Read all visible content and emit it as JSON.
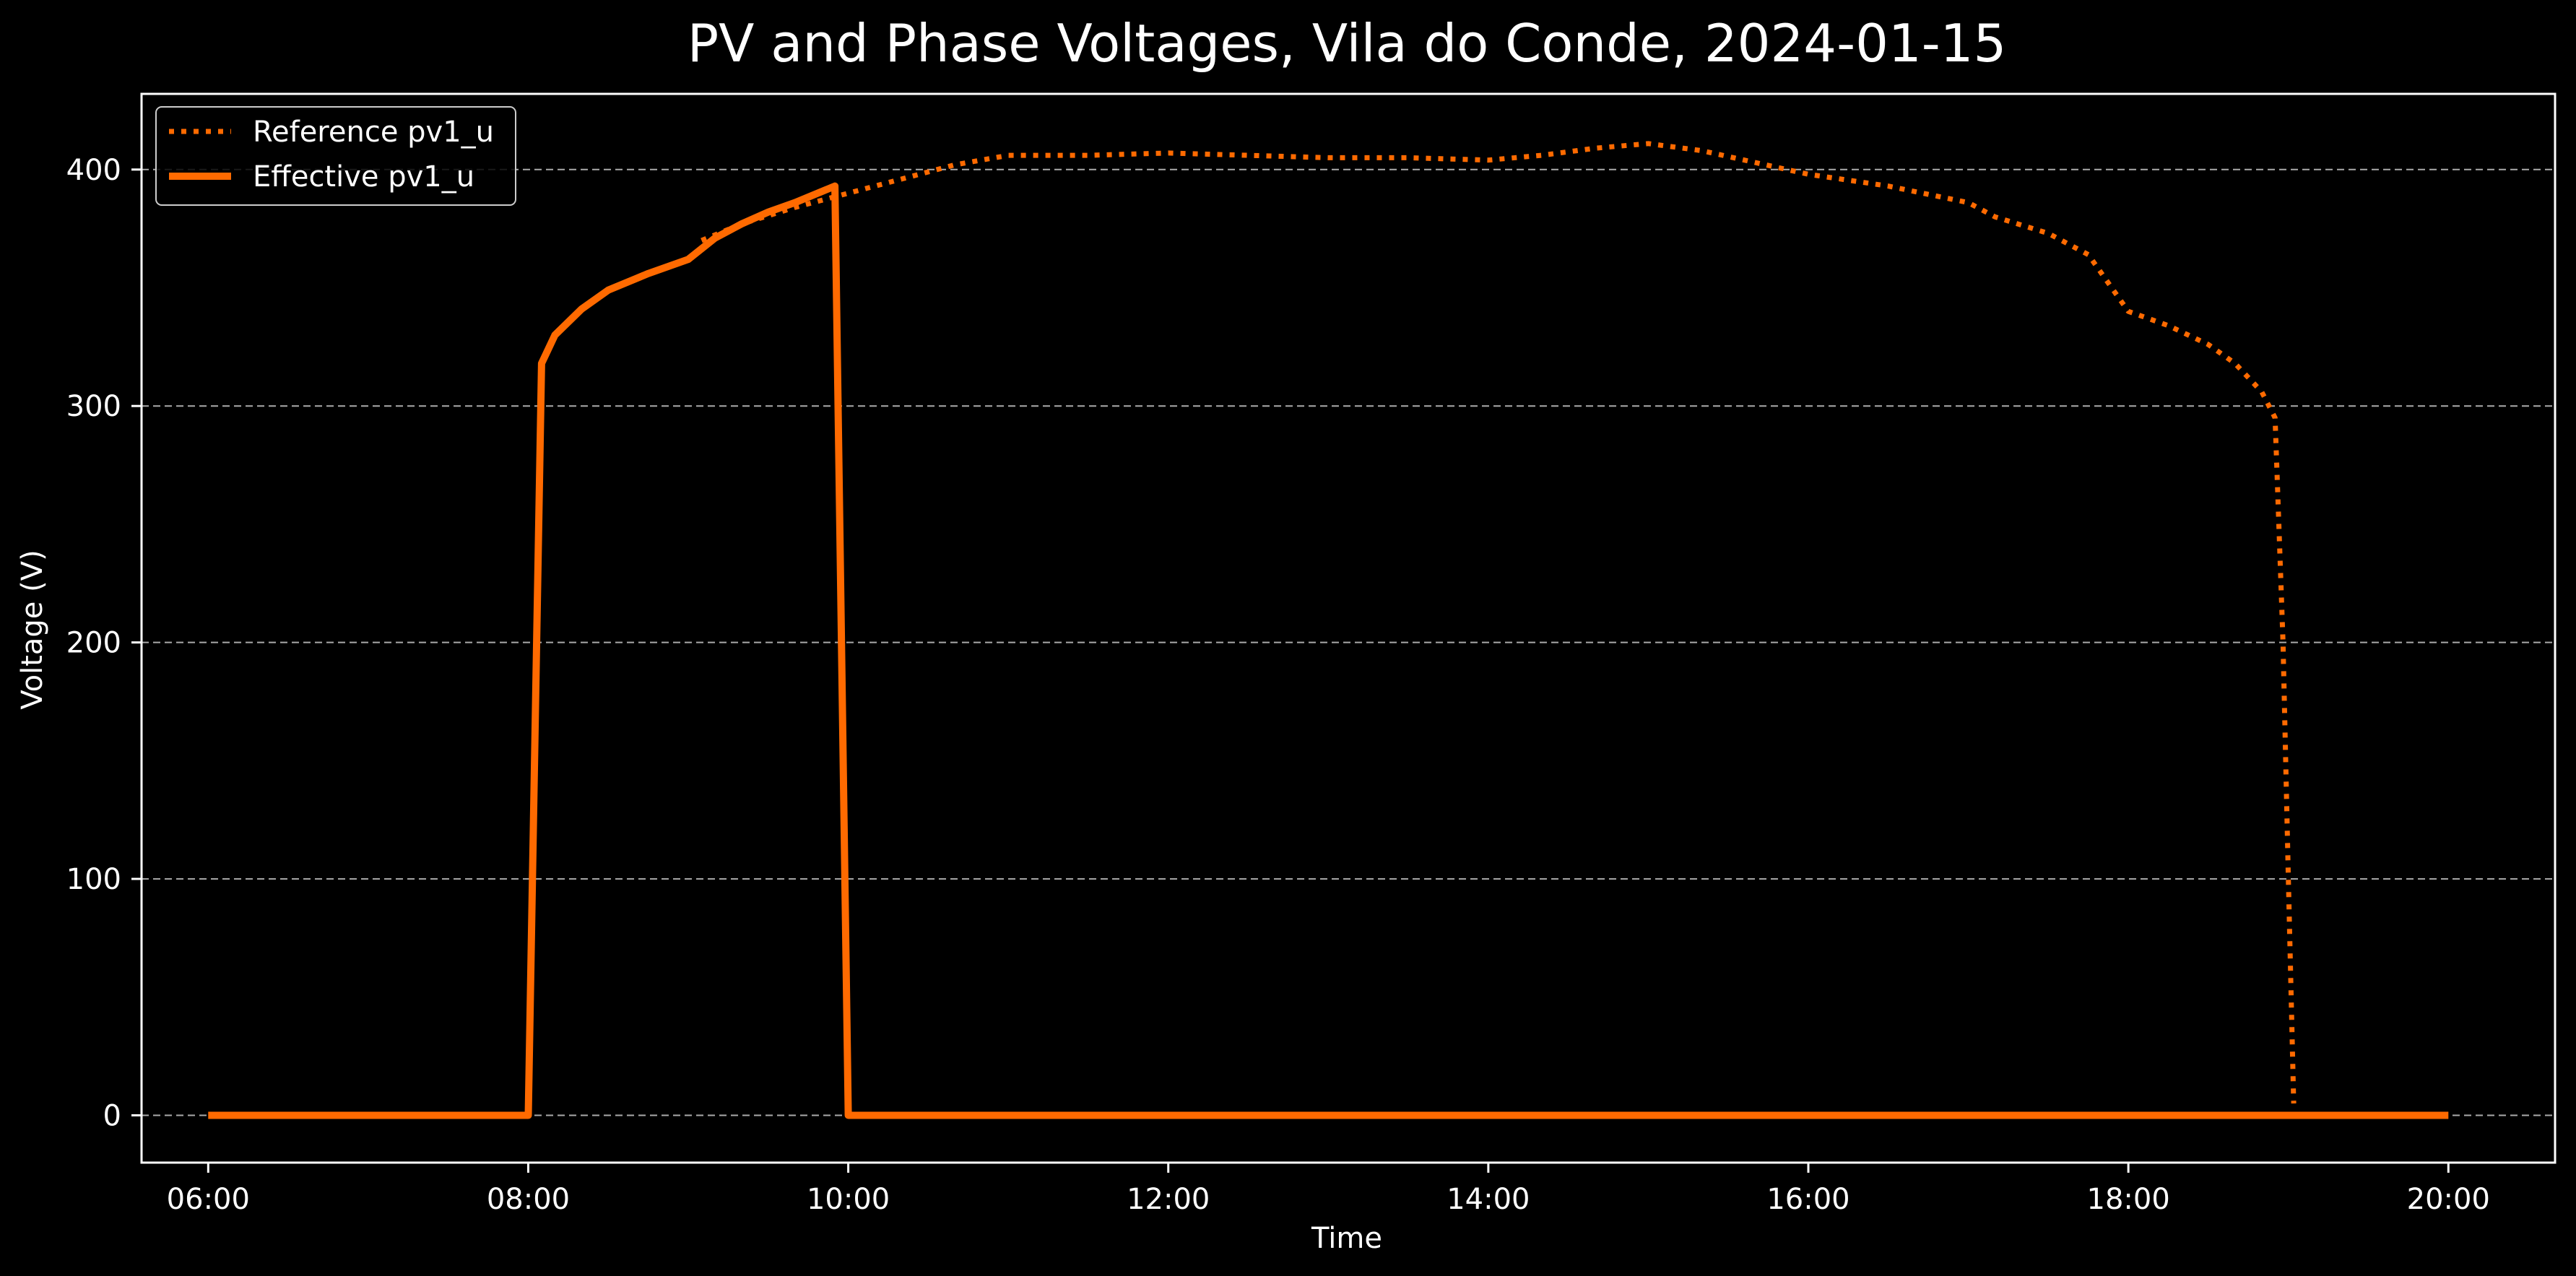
{
  "chart_data": {
    "type": "line",
    "title": "PV and Phase Voltages, Vila do Conde, 2024-01-15",
    "xlabel": "Time",
    "ylabel": "Voltage (V)",
    "xlim": [
      "05:35",
      "20:40"
    ],
    "ylim": [
      -20,
      432
    ],
    "x_ticks": [
      "06:00",
      "08:00",
      "10:00",
      "12:00",
      "14:00",
      "16:00",
      "18:00",
      "20:00"
    ],
    "y_ticks": [
      0,
      100,
      200,
      300,
      400
    ],
    "grid": "horizontal dashed",
    "legend_position": "top-left",
    "colors": {
      "background": "#000000",
      "series": "#ff6a00",
      "grid": "#aaaaaa",
      "frame": "#ffffff",
      "text": "#ffffff"
    },
    "series": [
      {
        "name": "Reference pv1_u",
        "style": "dotted",
        "points": [
          [
            "09:05",
            370
          ],
          [
            "09:20",
            377
          ],
          [
            "09:40",
            384
          ],
          [
            "10:00",
            390
          ],
          [
            "10:20",
            396
          ],
          [
            "10:40",
            402
          ],
          [
            "11:00",
            406
          ],
          [
            "11:30",
            406
          ],
          [
            "12:00",
            407
          ],
          [
            "12:30",
            406
          ],
          [
            "13:00",
            405
          ],
          [
            "13:30",
            405
          ],
          [
            "14:00",
            404
          ],
          [
            "14:20",
            406
          ],
          [
            "14:40",
            409
          ],
          [
            "15:00",
            411
          ],
          [
            "15:20",
            408
          ],
          [
            "15:40",
            403
          ],
          [
            "16:00",
            398
          ],
          [
            "16:30",
            393
          ],
          [
            "17:00",
            386
          ],
          [
            "17:10",
            380
          ],
          [
            "17:30",
            373
          ],
          [
            "17:45",
            364
          ],
          [
            "18:00",
            340
          ],
          [
            "18:15",
            334
          ],
          [
            "18:30",
            326
          ],
          [
            "18:40",
            318
          ],
          [
            "18:50",
            306
          ],
          [
            "18:55",
            295
          ],
          [
            "18:58",
            200
          ],
          [
            "19:00",
            100
          ],
          [
            "19:02",
            5
          ]
        ]
      },
      {
        "name": "Effective pv1_u",
        "style": "solid",
        "points": [
          [
            "06:00",
            0
          ],
          [
            "08:00",
            0
          ],
          [
            "08:05",
            318
          ],
          [
            "08:10",
            330
          ],
          [
            "08:20",
            341
          ],
          [
            "08:30",
            349
          ],
          [
            "08:45",
            356
          ],
          [
            "09:00",
            362
          ],
          [
            "09:10",
            371
          ],
          [
            "09:20",
            377
          ],
          [
            "09:30",
            382
          ],
          [
            "09:40",
            386
          ],
          [
            "09:55",
            393
          ],
          [
            "10:00",
            0
          ],
          [
            "12:00",
            0
          ],
          [
            "16:00",
            0
          ],
          [
            "20:00",
            0
          ]
        ]
      }
    ]
  }
}
